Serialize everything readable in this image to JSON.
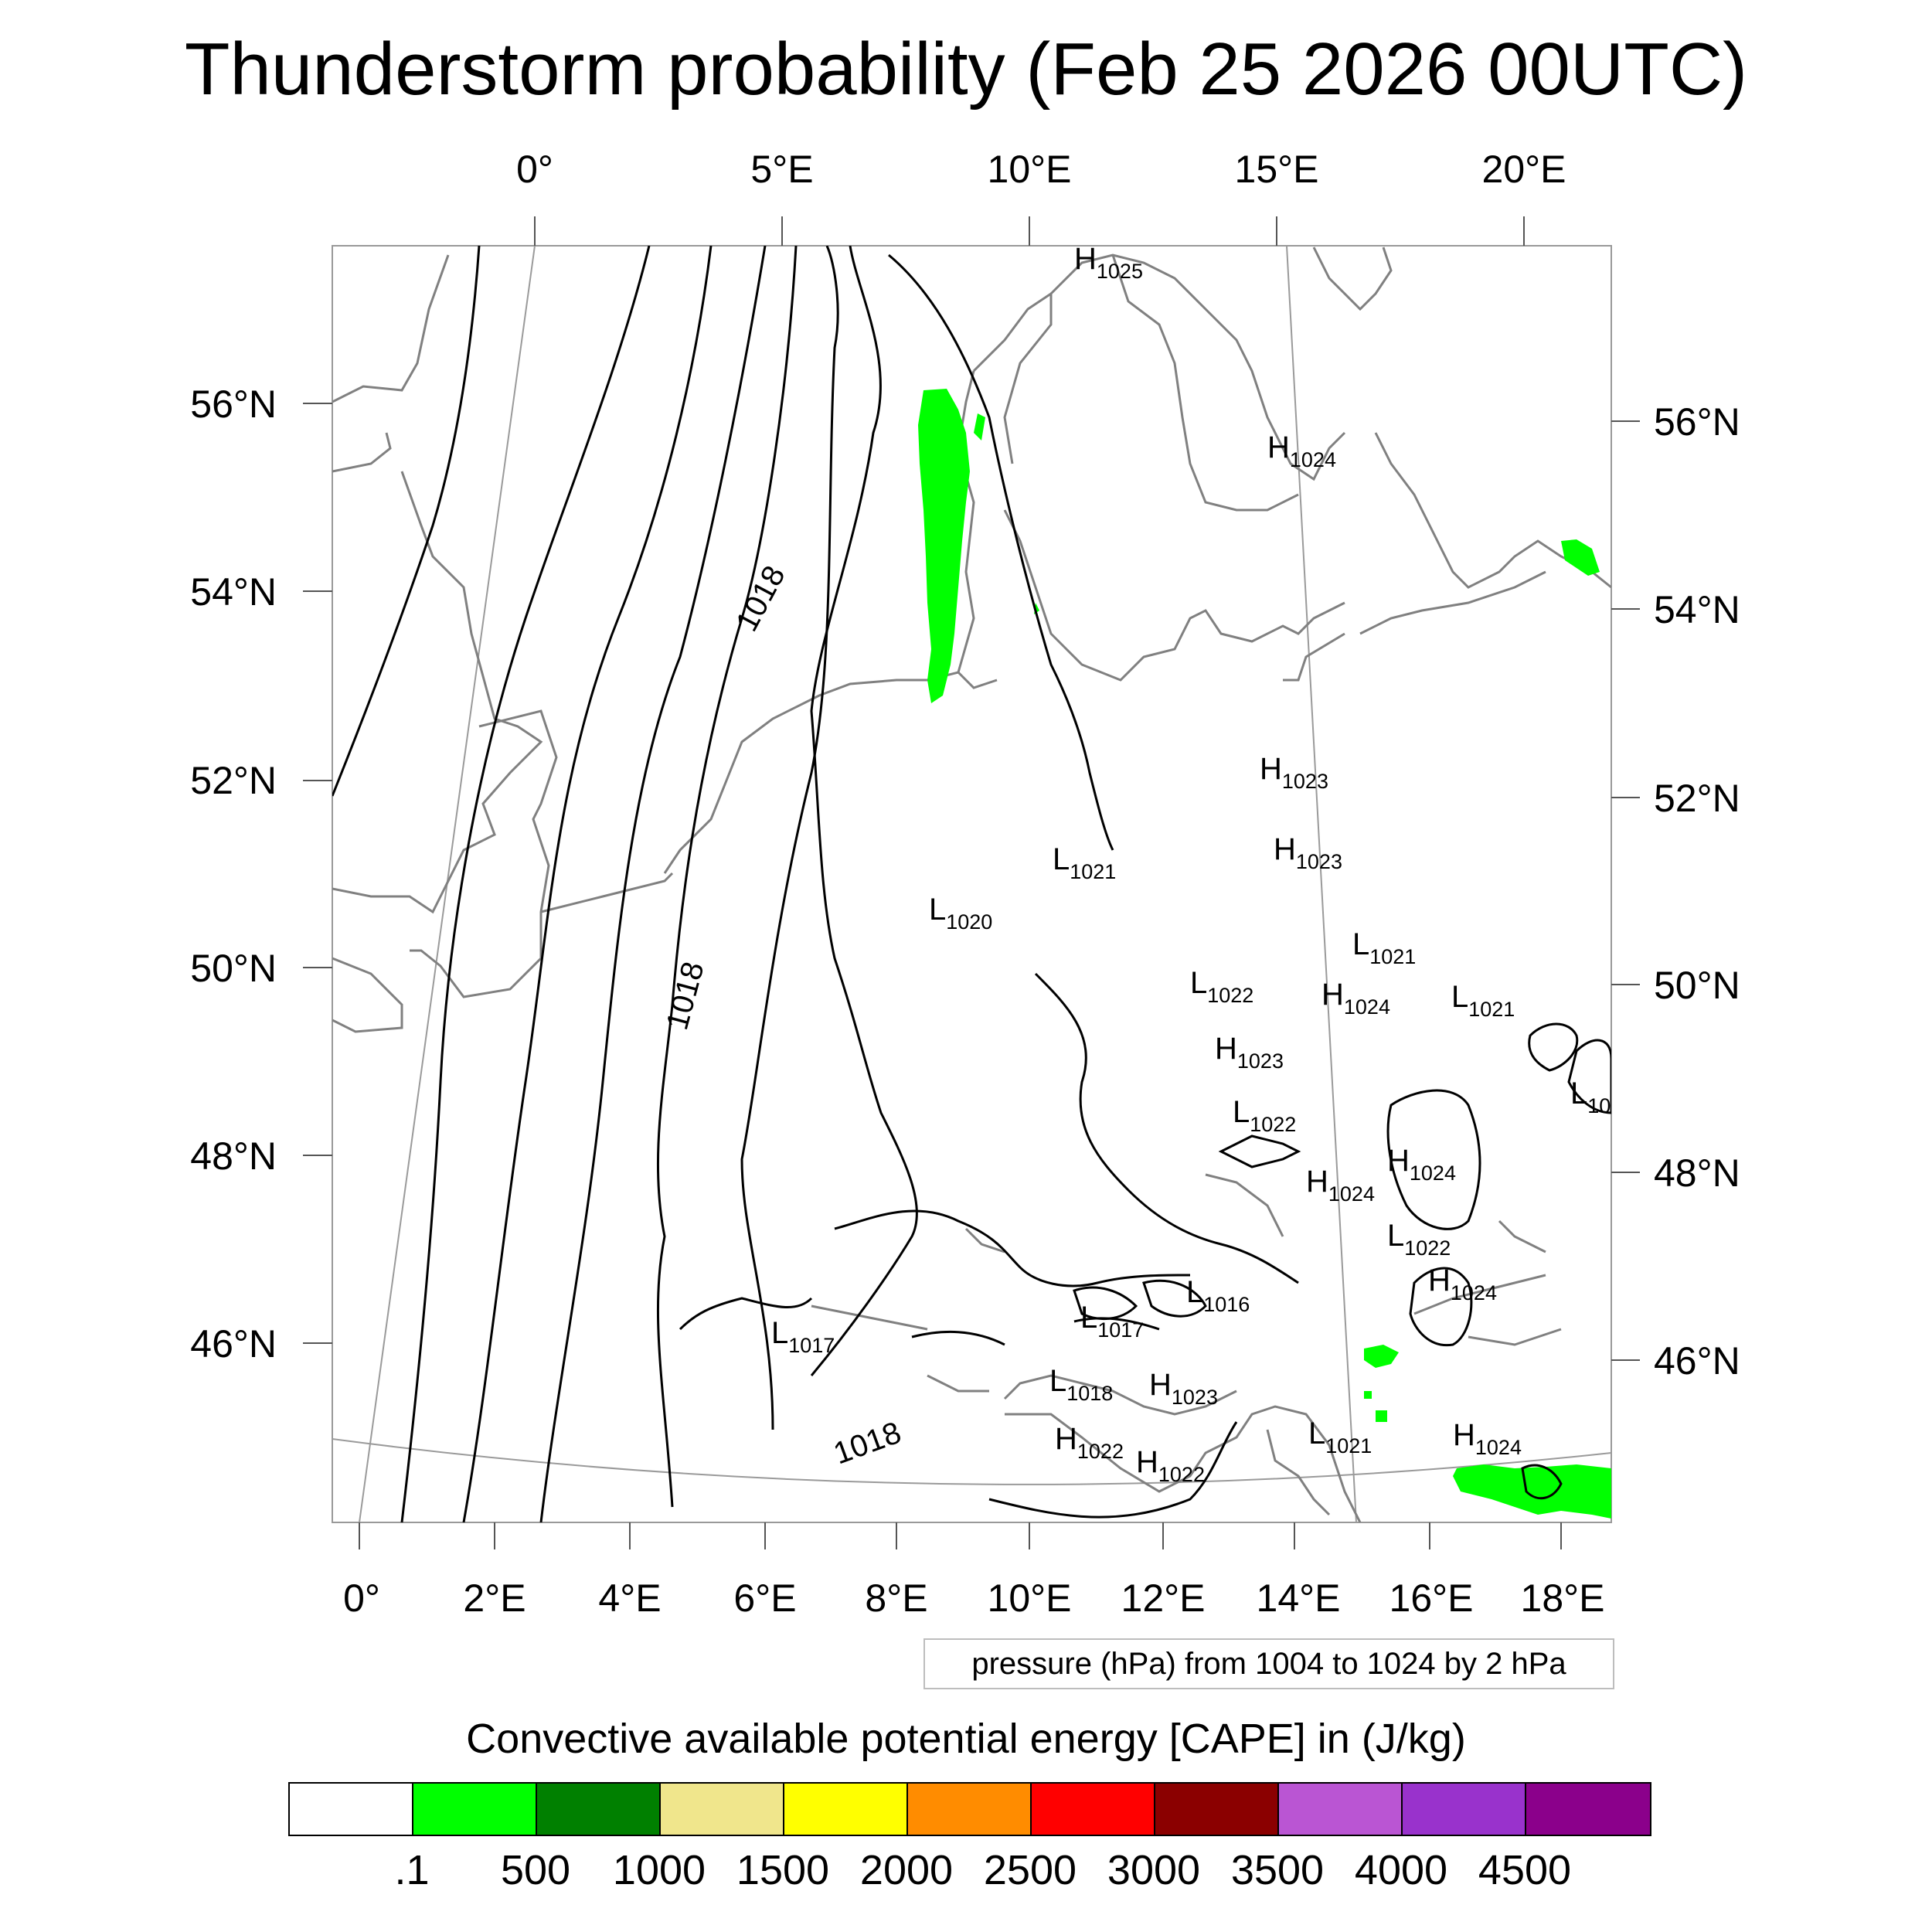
{
  "title": "Thunderstorm probability (Feb 25 2026 00UTC)",
  "colors": {
    "cape_low": "#00ff00",
    "coastline": "#808080",
    "isobar": "#000000",
    "graticule": "#9a9a9a"
  },
  "map": {
    "projection_note": "Lambert conformal",
    "top_lon_labels": [
      "0°",
      "5°E",
      "10°E",
      "15°E",
      "20°E"
    ],
    "bottom_lon_labels": [
      "0°",
      "2°E",
      "4°E",
      "6°E",
      "8°E",
      "10°E",
      "12°E",
      "14°E",
      "16°E",
      "18°E"
    ],
    "left_lat_labels": [
      "56°N",
      "54°N",
      "52°N",
      "50°N",
      "48°N",
      "46°N"
    ],
    "right_lat_labels": [
      "56°N",
      "54°N",
      "52°N",
      "50°N",
      "48°N",
      "46°N"
    ],
    "isobar_labels": [
      "1018",
      "1018",
      "1018"
    ],
    "pressure_centers": [
      {
        "kind": "H",
        "value": "1025"
      },
      {
        "kind": "H",
        "value": "1024"
      },
      {
        "kind": "H",
        "value": "1023"
      },
      {
        "kind": "H",
        "value": "1023"
      },
      {
        "kind": "L",
        "value": "1021"
      },
      {
        "kind": "L",
        "value": "1020"
      },
      {
        "kind": "L",
        "value": "1021"
      },
      {
        "kind": "L",
        "value": "1022"
      },
      {
        "kind": "H",
        "value": "1024"
      },
      {
        "kind": "L",
        "value": "1021"
      },
      {
        "kind": "H",
        "value": "1023"
      },
      {
        "kind": "L",
        "value": "10"
      },
      {
        "kind": "L",
        "value": "1022"
      },
      {
        "kind": "H",
        "value": "1024"
      },
      {
        "kind": "H",
        "value": "1024"
      },
      {
        "kind": "L",
        "value": "1022"
      },
      {
        "kind": "H",
        "value": "1024"
      },
      {
        "kind": "L",
        "value": "1016"
      },
      {
        "kind": "L",
        "value": "1017"
      },
      {
        "kind": "L",
        "value": "1017"
      },
      {
        "kind": "L",
        "value": "1018"
      },
      {
        "kind": "H",
        "value": "1023"
      },
      {
        "kind": "H",
        "value": "1022"
      },
      {
        "kind": "H",
        "value": "1022"
      },
      {
        "kind": "L",
        "value": "1021"
      },
      {
        "kind": "H",
        "value": "1024"
      }
    ]
  },
  "pressure_note": "pressure (hPa) from 1004 to 1024 by 2 hPa",
  "colorbar": {
    "title": "Convective available potential energy [CAPE] in (J/kg)",
    "colors": [
      "#ffffff",
      "#00ff00",
      "#008000",
      "#f0e68c",
      "#ffff00",
      "#ff8c00",
      "#ff0000",
      "#8b0000",
      "#ba55d3",
      "#9932cc",
      "#8b008b"
    ],
    "tick_labels": [
      ".1",
      "500",
      "1000",
      "1500",
      "2000",
      "2500",
      "3000",
      "3500",
      "4000",
      "4500"
    ]
  }
}
